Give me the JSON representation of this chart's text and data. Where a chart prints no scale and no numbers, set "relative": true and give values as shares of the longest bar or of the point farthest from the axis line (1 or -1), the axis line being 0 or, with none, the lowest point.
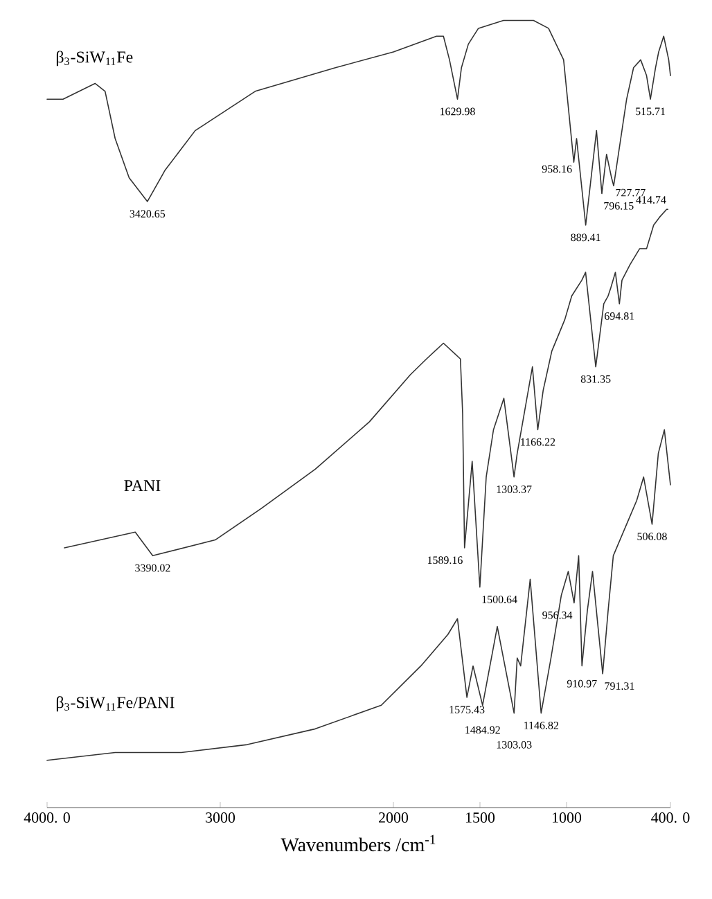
{
  "chart_data": {
    "type": "line",
    "relative": true,
    "xlabel": "Wavenumbers /cm$^{-1}$",
    "xlim": [
      4000,
      400
    ],
    "xticks": [
      {
        "value": 4000,
        "label": "4000. 0"
      },
      3000,
      2000,
      1500,
      1000,
      {
        "value": 400,
        "label": "400. 0"
      }
    ],
    "series": [
      {
        "name": "β$_{3}$-SiW$_{11}$Fe",
        "color": "#333333",
        "x": [
          4000,
          3908,
          3723,
          3665,
          3607,
          3526,
          3420.65,
          3318,
          3145,
          2798,
          2335,
          2000,
          1751,
          1711,
          1676,
          1629.98,
          1607,
          1567,
          1509,
          1364,
          1191,
          1104,
          1017,
          958.16,
          942,
          889.41,
          827,
          796.15,
          769,
          740,
          727.77,
          653,
          613,
          572,
          538,
          515.71,
          486,
          468,
          439,
          410,
          400
        ],
        "values": [
          0.9,
          0.9,
          0.92,
          0.91,
          0.85,
          0.8,
          0.77,
          0.81,
          0.86,
          0.91,
          0.94,
          0.96,
          0.98,
          0.98,
          0.95,
          0.9,
          0.94,
          0.97,
          0.99,
          1.0,
          1.0,
          0.99,
          0.95,
          0.82,
          0.85,
          0.74,
          0.86,
          0.78,
          0.83,
          0.8,
          0.79,
          0.9,
          0.94,
          0.95,
          0.93,
          0.9,
          0.94,
          0.96,
          0.98,
          0.95,
          0.93
        ]
      },
      {
        "name": "PANI",
        "color": "#333333",
        "x": [
          3900,
          3491,
          3390.02,
          3029,
          2763,
          2451,
          2139,
          1902,
          1809,
          1711,
          1613,
          1600,
          1589.16,
          1545,
          1500.64,
          1464,
          1422,
          1362,
          1303.37,
          1285,
          1245,
          1197,
          1166.22,
          1135,
          1085,
          1010,
          970,
          912,
          890,
          831.35,
          785,
          760,
          745,
          718,
          694.81,
          680,
          633,
          578,
          538,
          497,
          463,
          422,
          414.74
        ],
        "values": [
          0.33,
          0.35,
          0.32,
          0.34,
          0.38,
          0.43,
          0.49,
          0.55,
          0.57,
          0.59,
          0.57,
          0.5,
          0.33,
          0.44,
          0.28,
          0.42,
          0.48,
          0.52,
          0.42,
          0.45,
          0.5,
          0.56,
          0.48,
          0.53,
          0.58,
          0.62,
          0.65,
          0.67,
          0.68,
          0.56,
          0.64,
          0.65,
          0.66,
          0.68,
          0.64,
          0.67,
          0.69,
          0.71,
          0.71,
          0.74,
          0.75,
          0.76,
          0.76
        ]
      },
      {
        "name": "β$_{3}$-SiW$_{11}$Fe/PANI",
        "color": "#333333",
        "x": [
          4000,
          3607,
          3225,
          2844,
          2451,
          2070,
          1841,
          1685,
          1630,
          1575.43,
          1540,
          1484.92,
          1400,
          1303.03,
          1285,
          1265,
          1210,
          1146.82,
          1090,
          1030,
          990,
          956.34,
          930,
          910.97,
          880,
          850,
          791.31,
          760,
          730,
          653,
          595,
          555,
          506.08,
          470,
          435,
          400
        ],
        "values": [
          0.06,
          0.07,
          0.07,
          0.08,
          0.1,
          0.13,
          0.18,
          0.22,
          0.24,
          0.14,
          0.18,
          0.13,
          0.23,
          0.12,
          0.19,
          0.18,
          0.29,
          0.12,
          0.19,
          0.27,
          0.3,
          0.26,
          0.32,
          0.18,
          0.25,
          0.3,
          0.17,
          0.25,
          0.32,
          0.36,
          0.39,
          0.42,
          0.36,
          0.45,
          0.48,
          0.41
        ]
      }
    ],
    "annotations": [
      {
        "text": "3420.65",
        "x": 3420.65,
        "y": 0.77
      },
      {
        "text": "1629.98",
        "x": 1629.98,
        "y": 0.9
      },
      {
        "text": "958.16",
        "x": 958.16,
        "y": 0.82
      },
      {
        "text": "889.41",
        "x": 889.41,
        "y": 0.74
      },
      {
        "text": "796.15",
        "x": 796.15,
        "y": 0.78
      },
      {
        "text": "727.77",
        "x": 727.77,
        "y": 0.79
      },
      {
        "text": "515.71",
        "x": 515.71,
        "y": 0.9
      },
      {
        "text": "414.74",
        "x": 414.74,
        "y": 0.76
      },
      {
        "text": "694.81",
        "x": 694.81,
        "y": 0.64
      },
      {
        "text": "831.35",
        "x": 831.35,
        "y": 0.56
      },
      {
        "text": "1166.22",
        "x": 1166.22,
        "y": 0.48
      },
      {
        "text": "1303.37",
        "x": 1303.37,
        "y": 0.42
      },
      {
        "text": "3390.02",
        "x": 3390.02,
        "y": 0.32
      },
      {
        "text": "1589.16",
        "x": 1589.16,
        "y": 0.33
      },
      {
        "text": "1500.64",
        "x": 1500.64,
        "y": 0.28
      },
      {
        "text": "506.08",
        "x": 506.08,
        "y": 0.36
      },
      {
        "text": "1575.43",
        "x": 1575.43,
        "y": 0.14
      },
      {
        "text": "1484.92",
        "x": 1484.92,
        "y": 0.13
      },
      {
        "text": "1303.03",
        "x": 1303.03,
        "y": 0.12
      },
      {
        "text": "1146.82",
        "x": 1146.82,
        "y": 0.12
      },
      {
        "text": "956.34",
        "x": 956.34,
        "y": 0.26
      },
      {
        "text": "910.97",
        "x": 910.97,
        "y": 0.18
      },
      {
        "text": "791.31",
        "x": 791.31,
        "y": 0.17
      }
    ]
  }
}
